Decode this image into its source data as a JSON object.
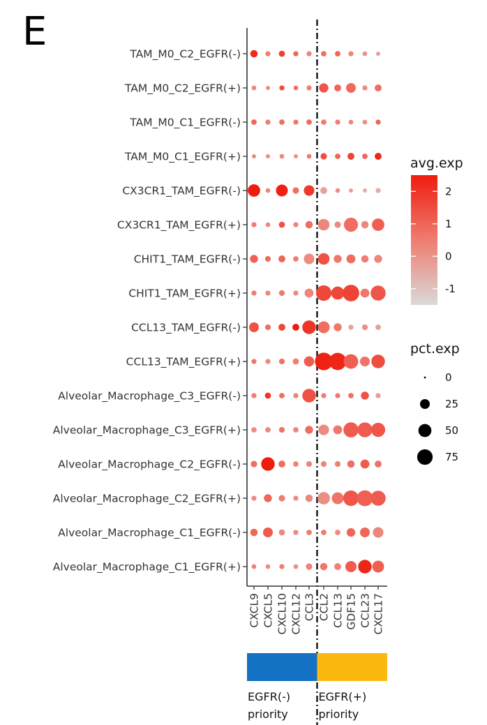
{
  "panel_letter": "E",
  "chart_data": {
    "type": "dotplot",
    "rows": [
      "TAM_M0_C2_EGFR(-)",
      "TAM_M0_C2_EGFR(+)",
      "TAM_M0_C1_EGFR(-)",
      "TAM_M0_C1_EGFR(+)",
      "CX3CR1_TAM_EGFR(-)",
      "CX3CR1_TAM_EGFR(+)",
      "CHIT1_TAM_EGFR(-)",
      "CHIT1_TAM_EGFR(+)",
      "CCL13_TAM_EGFR(-)",
      "CCL13_TAM_EGFR(+)",
      "Alveolar_Macrophage_C3_EGFR(-)",
      "Alveolar_Macrophage_C3_EGFR(+)",
      "Alveolar_Macrophage_C2_EGFR(-)",
      "Alveolar_Macrophage_C2_EGFR(+)",
      "Alveolar_Macrophage_C1_EGFR(-)",
      "Alveolar_Macrophage_C1_EGFR(+)"
    ],
    "columns": [
      "CXCL9",
      "CXCL5",
      "CXCL10",
      "CXCL12",
      "CCL3",
      "CCL2",
      "CCL13",
      "GDF15",
      "CCL23",
      "CXCL17"
    ],
    "avg_exp": [
      [
        2.2,
        0.5,
        1.8,
        1.0,
        0.3,
        0.8,
        1.0,
        0.3,
        0.1,
        -0.2
      ],
      [
        0.3,
        0.2,
        1.5,
        0.8,
        0.5,
        1.3,
        1.0,
        0.9,
        0.2,
        0.8
      ],
      [
        1.0,
        0.5,
        0.8,
        0.6,
        0.9,
        0.5,
        0.5,
        0.3,
        0.2,
        1.0
      ],
      [
        0.3,
        0.2,
        0.3,
        0.1,
        0.6,
        1.5,
        1.0,
        1.7,
        1.0,
        2.3
      ],
      [
        2.5,
        0.3,
        2.4,
        0.8,
        1.9,
        -0.3,
        0.1,
        -0.2,
        -0.5,
        -0.5
      ],
      [
        0.5,
        0.3,
        1.4,
        0.3,
        0.8,
        0.3,
        0.2,
        0.8,
        0.3,
        1.1
      ],
      [
        1.1,
        0.9,
        1.0,
        0.5,
        0.2,
        1.4,
        0.6,
        0.8,
        0.5,
        0.3
      ],
      [
        0.5,
        0.3,
        0.6,
        0.2,
        0.3,
        1.6,
        1.6,
        1.7,
        0.6,
        1.3
      ],
      [
        1.4,
        0.8,
        1.6,
        2.5,
        2.0,
        0.8,
        0.6,
        -0.3,
        0.1,
        -0.3
      ],
      [
        0.6,
        0.3,
        0.7,
        0.5,
        1.2,
        2.4,
        2.3,
        1.1,
        0.7,
        1.5
      ],
      [
        0.5,
        2.0,
        0.8,
        0.4,
        1.4,
        0.5,
        0.6,
        0.7,
        1.4,
        -0.2
      ],
      [
        0.2,
        0.3,
        0.7,
        0.3,
        0.8,
        0.2,
        0.6,
        1.2,
        1.2,
        1.3
      ],
      [
        0.8,
        2.5,
        0.8,
        0.4,
        0.3,
        0.3,
        0.4,
        0.8,
        1.2,
        0.7
      ],
      [
        0.2,
        1.0,
        0.5,
        0.2,
        0.3,
        0.1,
        0.7,
        1.3,
        1.1,
        1.2
      ],
      [
        1.0,
        1.2,
        0.2,
        0.2,
        0.5,
        0.5,
        0.2,
        1.0,
        1.0,
        0.3
      ],
      [
        0.4,
        0.2,
        0.5,
        0.1,
        0.4,
        0.6,
        0.4,
        1.2,
        2.3,
        1.1
      ]
    ],
    "pct_exp": [
      [
        12,
        4,
        7,
        4,
        4,
        5,
        5,
        4,
        3,
        2
      ],
      [
        3,
        2,
        4,
        3,
        4,
        22,
        10,
        25,
        4,
        10
      ],
      [
        5,
        4,
        5,
        4,
        5,
        5,
        4,
        3,
        3,
        4
      ],
      [
        2,
        2,
        3,
        2,
        3,
        8,
        5,
        10,
        5,
        10
      ],
      [
        45,
        3,
        40,
        8,
        30,
        10,
        3,
        2,
        2,
        4
      ],
      [
        4,
        3,
        7,
        4,
        12,
        38,
        8,
        60,
        12,
        45
      ],
      [
        15,
        6,
        10,
        5,
        30,
        38,
        15,
        20,
        12,
        15
      ],
      [
        4,
        4,
        6,
        4,
        20,
        75,
        50,
        88,
        20,
        70
      ],
      [
        25,
        6,
        10,
        10,
        55,
        40,
        15,
        4,
        6,
        5
      ],
      [
        4,
        4,
        6,
        7,
        28,
        100,
        95,
        65,
        25,
        55
      ],
      [
        4,
        7,
        5,
        4,
        55,
        4,
        4,
        5,
        15,
        4
      ],
      [
        5,
        5,
        6,
        5,
        15,
        30,
        20,
        70,
        68,
        60
      ],
      [
        8,
        55,
        10,
        5,
        6,
        6,
        6,
        12,
        20,
        10
      ],
      [
        4,
        15,
        8,
        4,
        12,
        45,
        40,
        75,
        80,
        70
      ],
      [
        12,
        25,
        7,
        4,
        5,
        5,
        5,
        18,
        25,
        30
      ],
      [
        3,
        3,
        4,
        3,
        8,
        12,
        10,
        35,
        55,
        40
      ]
    ],
    "xlabel": "",
    "ylabel": "",
    "divider_between": [
      "CCL3",
      "CCL2"
    ],
    "color_scale": {
      "title": "avg.exp",
      "ticks": [
        2,
        1,
        0,
        -1
      ],
      "low": "#d9d9d9",
      "high": "#ee1c0e",
      "range": [
        -1.5,
        2.5
      ]
    },
    "size_scale": {
      "title": "pct.exp",
      "ticks": [
        0,
        25,
        50,
        75
      ]
    },
    "groups": [
      {
        "label_line1": "EGFR(-)",
        "label_line2": "priority",
        "color": "#1571c4",
        "columns": [
          "CXCL9",
          "CXCL5",
          "CXCL10",
          "CXCL12",
          "CCL3"
        ]
      },
      {
        "label_line1": "EGFR(+)",
        "label_line2": "priority",
        "color": "#fbb910",
        "columns": [
          "CCL2",
          "CCL13",
          "GDF15",
          "CCL23",
          "CXCL17"
        ]
      }
    ]
  }
}
